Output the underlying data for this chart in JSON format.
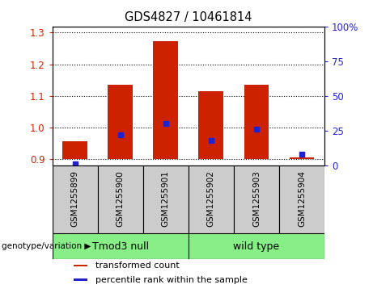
{
  "title": "GDS4827 / 10461814",
  "samples": [
    "GSM1255899",
    "GSM1255900",
    "GSM1255901",
    "GSM1255902",
    "GSM1255903",
    "GSM1255904"
  ],
  "bar_bottoms": [
    0.9,
    0.9,
    0.9,
    0.9,
    0.9,
    0.9
  ],
  "bar_tops": [
    0.955,
    1.135,
    1.272,
    1.115,
    1.135,
    0.906
  ],
  "percentile_values": [
    1,
    22,
    30,
    18,
    26,
    8
  ],
  "ylim_left": [
    0.88,
    1.32
  ],
  "ylim_right": [
    0,
    100
  ],
  "yticks_left": [
    0.9,
    1.0,
    1.1,
    1.2,
    1.3
  ],
  "yticks_right": [
    0,
    25,
    50,
    75,
    100
  ],
  "ytick_labels_right": [
    "0",
    "25",
    "50",
    "75",
    "100%"
  ],
  "bar_color": "#CC2200",
  "dot_color": "#2222CC",
  "bg_color": "#FFFFFF",
  "plot_bg": "#FFFFFF",
  "sample_box_color": "#CCCCCC",
  "groups": [
    {
      "label": "Tmod3 null",
      "indices": [
        0,
        1,
        2
      ],
      "color": "#88EE88"
    },
    {
      "label": "wild type",
      "indices": [
        3,
        4,
        5
      ],
      "color": "#88EE88"
    }
  ],
  "group_label_prefix": "genotype/variation",
  "legend_items": [
    {
      "color": "#CC2200",
      "label": "transformed count"
    },
    {
      "color": "#2222CC",
      "label": "percentile rank within the sample"
    }
  ]
}
